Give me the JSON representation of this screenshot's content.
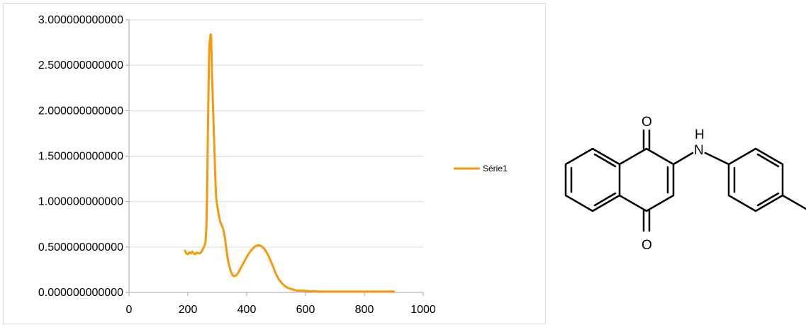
{
  "chart_data": {
    "type": "line",
    "x_ticks": [
      "0",
      "200",
      "400",
      "600",
      "800",
      "1000"
    ],
    "y_ticks": [
      "0.000000000000",
      "0.500000000000",
      "1.000000000000",
      "1.500000000000",
      "2.000000000000",
      "2.500000000000",
      "3.000000000000"
    ],
    "xlim": [
      0,
      1000
    ],
    "ylim": [
      0,
      3
    ],
    "grid": "horizontal",
    "legend_position": "right",
    "series": [
      {
        "name": "Série1",
        "color": "#f59a0c",
        "points": [
          [
            190,
            0.46
          ],
          [
            195,
            0.43
          ],
          [
            200,
            0.42
          ],
          [
            205,
            0.44
          ],
          [
            210,
            0.43
          ],
          [
            215,
            0.45
          ],
          [
            220,
            0.43
          ],
          [
            225,
            0.42
          ],
          [
            230,
            0.44
          ],
          [
            235,
            0.43
          ],
          [
            240,
            0.43
          ],
          [
            245,
            0.44
          ],
          [
            250,
            0.47
          ],
          [
            255,
            0.5
          ],
          [
            260,
            0.55
          ],
          [
            263,
            0.7
          ],
          [
            266,
            1.2
          ],
          [
            268,
            1.75
          ],
          [
            270,
            2.2
          ],
          [
            272,
            2.6
          ],
          [
            274,
            2.75
          ],
          [
            276,
            2.8
          ],
          [
            277,
            2.84
          ],
          [
            278,
            2.8
          ],
          [
            279,
            2.83
          ],
          [
            280,
            2.7
          ],
          [
            282,
            2.4
          ],
          [
            284,
            2.2
          ],
          [
            286,
            2.0
          ],
          [
            288,
            1.8
          ],
          [
            290,
            1.6
          ],
          [
            293,
            1.3
          ],
          [
            296,
            1.05
          ],
          [
            300,
            0.95
          ],
          [
            305,
            0.85
          ],
          [
            310,
            0.78
          ],
          [
            315,
            0.74
          ],
          [
            320,
            0.7
          ],
          [
            325,
            0.62
          ],
          [
            330,
            0.5
          ],
          [
            335,
            0.38
          ],
          [
            340,
            0.3
          ],
          [
            345,
            0.24
          ],
          [
            350,
            0.2
          ],
          [
            355,
            0.18
          ],
          [
            360,
            0.18
          ],
          [
            365,
            0.19
          ],
          [
            370,
            0.21
          ],
          [
            380,
            0.27
          ],
          [
            390,
            0.33
          ],
          [
            400,
            0.39
          ],
          [
            410,
            0.44
          ],
          [
            420,
            0.48
          ],
          [
            430,
            0.51
          ],
          [
            440,
            0.52
          ],
          [
            450,
            0.51
          ],
          [
            460,
            0.48
          ],
          [
            470,
            0.43
          ],
          [
            480,
            0.36
          ],
          [
            490,
            0.28
          ],
          [
            500,
            0.2
          ],
          [
            510,
            0.14
          ],
          [
            520,
            0.1
          ],
          [
            530,
            0.07
          ],
          [
            540,
            0.05
          ],
          [
            550,
            0.04
          ],
          [
            560,
            0.03
          ],
          [
            570,
            0.02
          ],
          [
            590,
            0.02
          ],
          [
            610,
            0.015
          ],
          [
            650,
            0.01
          ],
          [
            700,
            0.01
          ],
          [
            750,
            0.01
          ],
          [
            800,
            0.01
          ],
          [
            850,
            0.01
          ],
          [
            900,
            0.01
          ]
        ]
      }
    ]
  },
  "structure": {
    "labels": {
      "top_oxygen": "O",
      "bottom_oxygen": "O",
      "nh_h": "H",
      "nh_n": "N"
    }
  }
}
